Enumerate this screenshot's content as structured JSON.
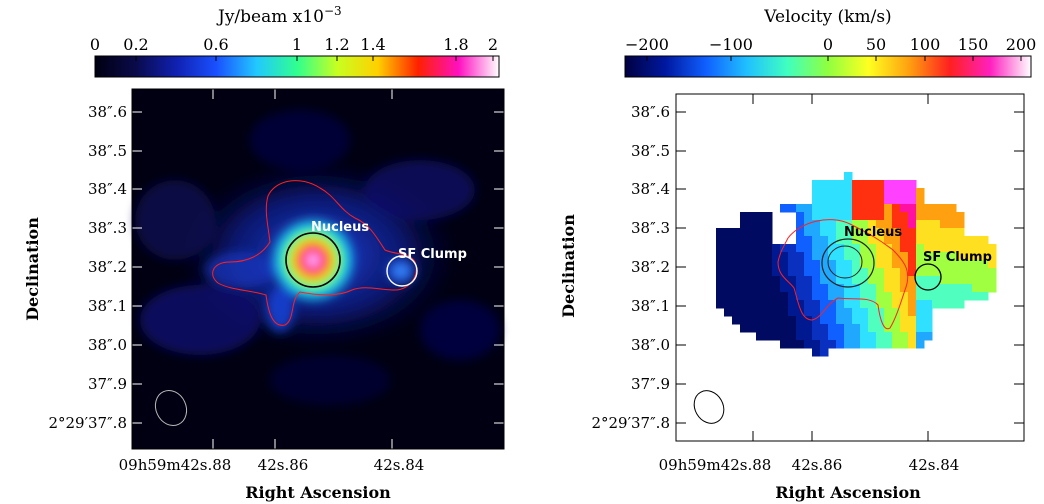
{
  "left_panel": {
    "colorbar": {
      "label": "Jy/beam  x10",
      "exponent": "−3",
      "ticks": [
        "0",
        "0.2",
        "0.6",
        "1",
        "1.2",
        "1.4",
        "1.8",
        "2"
      ],
      "colors": [
        "#000010",
        "#0a0a4a",
        "#1020b0",
        "#1a50ff",
        "#22c8ff",
        "#30ff90",
        "#c8ff20",
        "#ffd000",
        "#ff2000",
        "#ff10c0",
        "#ffffff"
      ]
    },
    "ylabel": "Declination",
    "xlabel": "Right Ascension",
    "dec_ticks": [
      "38″.6",
      "38″.5",
      "38″.4",
      "38″.3",
      "38″.2",
      "38″.1",
      "38″.0",
      "37″.9",
      "2°29′37″.8"
    ],
    "ra_ticks": [
      "09h59m42s.88",
      "42s.86",
      "42s.84"
    ],
    "annotations": {
      "nucleus": "Nucleus",
      "sf_clump": "SF Clump"
    }
  },
  "right_panel": {
    "colorbar": {
      "label": "Velocity (km/s)",
      "ticks": [
        "−200",
        "−100",
        "0",
        "50",
        "100",
        "150",
        "200"
      ],
      "colors": [
        "#000040",
        "#0018a0",
        "#1060ff",
        "#20c0ff",
        "#40ffc0",
        "#90ff40",
        "#ffff20",
        "#ffa010",
        "#ff2020",
        "#ff20c0",
        "#ffffff"
      ]
    },
    "ylabel": "Declination",
    "xlabel": "Right Ascension",
    "dec_ticks": [
      "38″.6",
      "38″.5",
      "38″.4",
      "38″.3",
      "38″.2",
      "38″.1",
      "38″.0",
      "37″.9",
      "2°29′37″.8"
    ],
    "ra_ticks": [
      "09h59m42s.88",
      "42s.86",
      "42s.84"
    ],
    "annotations": {
      "nucleus": "Nucleus",
      "sf_clump": "SF Clump"
    }
  }
}
